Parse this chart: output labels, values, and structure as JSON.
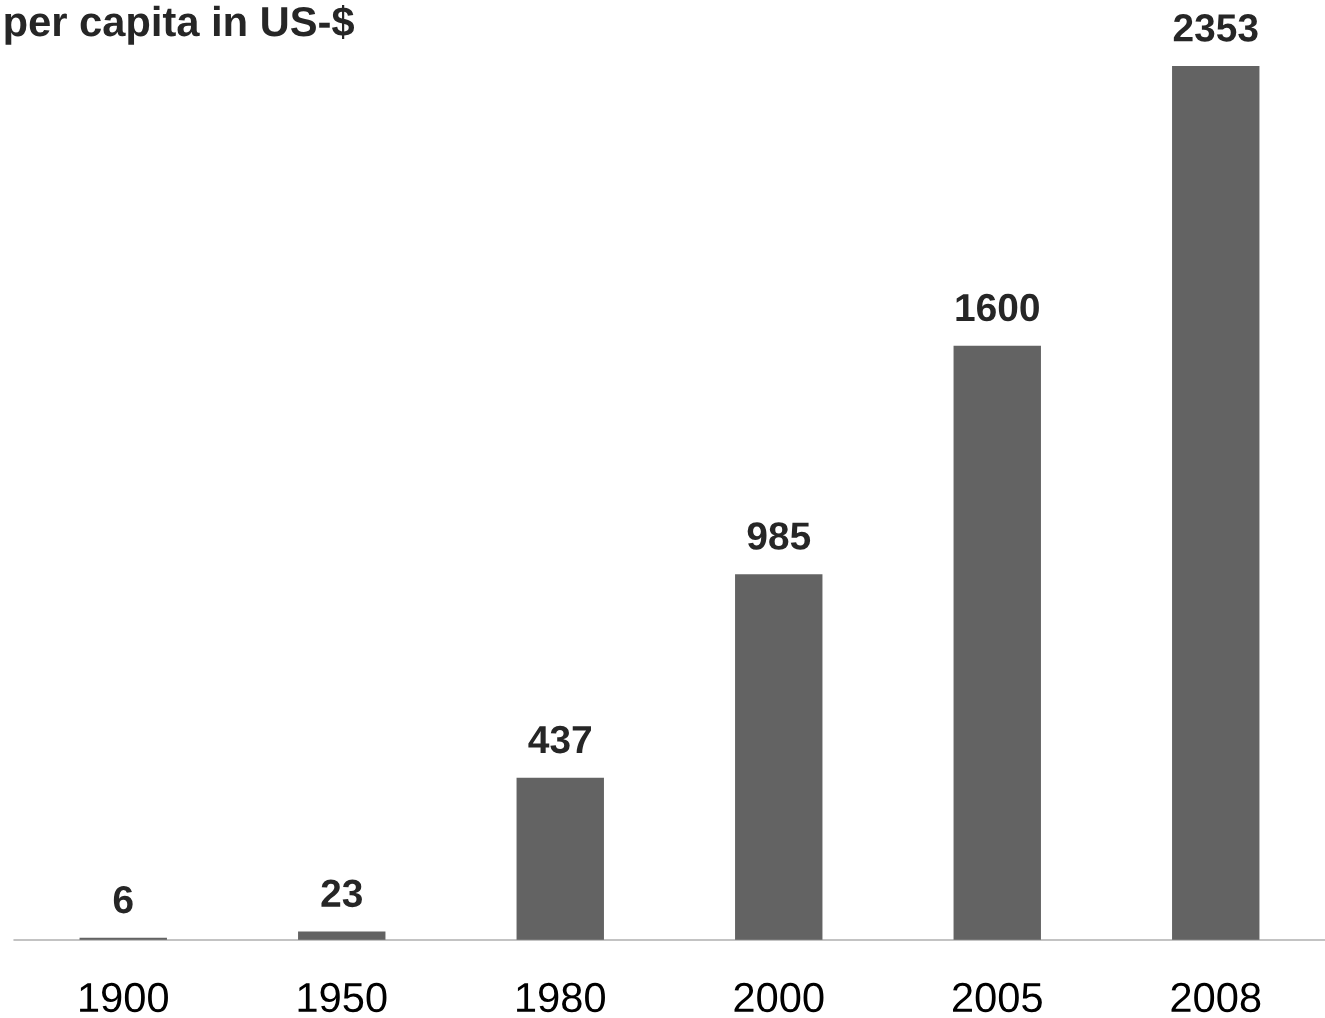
{
  "chart_data": {
    "type": "bar",
    "title": "per capita in US-$",
    "categories": [
      "1900",
      "1950",
      "1980",
      "2000",
      "2005",
      "2008"
    ],
    "values": [
      6,
      23,
      437,
      985,
      1600,
      2353
    ],
    "color": "#636363",
    "data_labels": true,
    "grid": false,
    "legend": false
  }
}
